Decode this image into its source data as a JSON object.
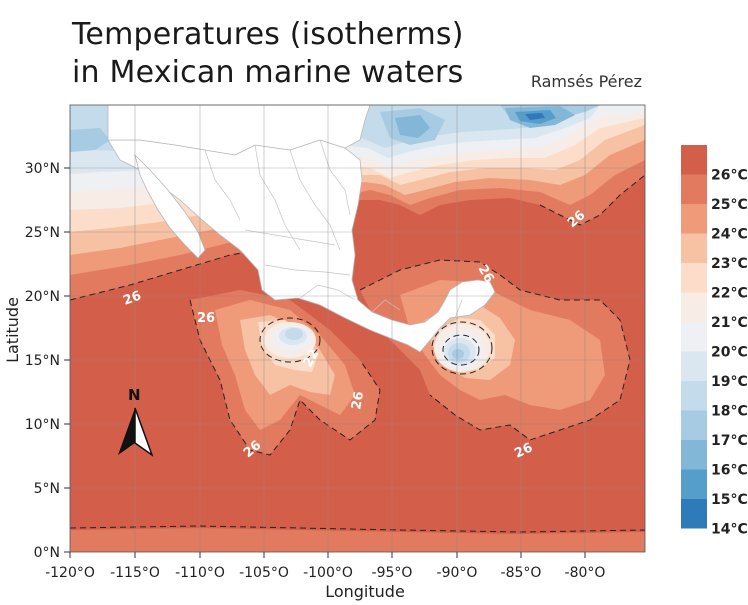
{
  "title_line1": "Temperatures (isotherms)",
  "title_line2": "in Mexican marine waters",
  "author": "Ramsés Pérez",
  "axes": {
    "x_title": "Longitude",
    "y_title": "Latitude",
    "x_ticks": [
      "-120°O",
      "-115°O",
      "-110°O",
      "-105°O",
      "-100°O",
      "-95°O",
      "-90°O",
      "-85°O",
      "-80°O"
    ],
    "y_ticks": [
      "0°N",
      "5°N",
      "10°N",
      "15°N",
      "20°N",
      "25°N",
      "30°N"
    ]
  },
  "north_arrow_label": "N",
  "contour_labels": [
    "26",
    "26",
    "26",
    "26",
    "26",
    "26",
    "26",
    "22"
  ],
  "legend": {
    "items": [
      {
        "label": "26°C",
        "color": "#d35f4b"
      },
      {
        "label": "25°C",
        "color": "#e27a5f"
      },
      {
        "label": "24°C",
        "color": "#ef9a79"
      },
      {
        "label": "23°C",
        "color": "#f7c1a3"
      },
      {
        "label": "22°C",
        "color": "#fbddc9"
      },
      {
        "label": "21°C",
        "color": "#f7ece6"
      },
      {
        "label": "20°C",
        "color": "#eef0f3"
      },
      {
        "label": "19°C",
        "color": "#dbe7f0"
      },
      {
        "label": "18°C",
        "color": "#c3dbea"
      },
      {
        "label": "17°C",
        "color": "#a6cbe3"
      },
      {
        "label": "16°C",
        "color": "#82b7d8"
      },
      {
        "label": "15°C",
        "color": "#559ecb"
      },
      {
        "label": "14°C",
        "color": "#2f7ab8"
      }
    ]
  },
  "colors": {
    "warm_ocean": "#d35f4b",
    "land": "#ffffff",
    "grid": "#8a8a8a"
  }
}
